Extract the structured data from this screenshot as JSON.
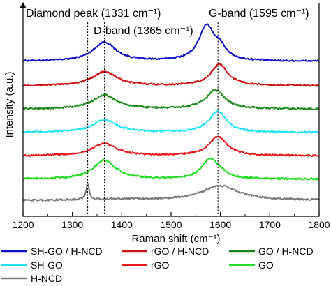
{
  "chart_data": {
    "type": "line",
    "title": "",
    "xlabel": "Raman shift (cm⁻¹)",
    "ylabel": "Intensity (a.u.)",
    "xlim": [
      1200,
      1800
    ],
    "x_ticks": [
      "1200",
      "1300",
      "1400",
      "1500",
      "1600",
      "1700",
      "1800"
    ],
    "grid": false,
    "legend_position": "bottom",
    "reference_lines": [
      {
        "x": 1331,
        "label": "Diamond peak (1331 cm⁻¹)",
        "style": "dotted"
      },
      {
        "x": 1365,
        "label": "D-band (1365 cm⁻¹)",
        "style": "dotted"
      },
      {
        "x": 1595,
        "label": "G-band (1595 cm⁻¹)",
        "style": "dotted"
      }
    ],
    "series": [
      {
        "name": "SH-GO / H-NCD",
        "color": "#1010c8",
        "offset": 6,
        "baseline": 0.1,
        "d": [
          1365,
          0.85,
          55
        ],
        "g": [
          1572,
          1.55,
          38
        ],
        "g2": [
          1600,
          0.45,
          30
        ],
        "diamond": 0,
        "noise": 0.035
      },
      {
        "name": "rGO / H-NCD",
        "color": "#c81414",
        "offset": 5,
        "baseline": 0.05,
        "d": [
          1365,
          0.62,
          60
        ],
        "g": [
          1598,
          0.95,
          42
        ],
        "g2": [
          1600,
          0,
          30
        ],
        "diamond": 0,
        "noise": 0.035
      },
      {
        "name": "GO / H-NCD",
        "color": "#1a8a1a",
        "offset": 4,
        "baseline": 0.05,
        "d": [
          1365,
          0.62,
          60
        ],
        "g": [
          1590,
          0.85,
          45
        ],
        "g2": [
          1600,
          0,
          30
        ],
        "diamond": 0,
        "noise": 0.04
      },
      {
        "name": "SH-GO",
        "color": "#22e4f0",
        "offset": 3,
        "baseline": 0.05,
        "d": [
          1365,
          0.55,
          60
        ],
        "g": [
          1595,
          0.95,
          42
        ],
        "g2": [
          1600,
          0,
          30
        ],
        "diamond": 0,
        "noise": 0.04
      },
      {
        "name": "rGO",
        "color": "#e81818",
        "offset": 2,
        "baseline": 0.05,
        "d": [
          1365,
          0.55,
          60
        ],
        "g": [
          1595,
          0.85,
          45
        ],
        "g2": [
          1600,
          0,
          30
        ],
        "diamond": 0,
        "noise": 0.035
      },
      {
        "name": "GO",
        "color": "#22dd22",
        "offset": 1,
        "baseline": 0.05,
        "d": [
          1365,
          0.85,
          55
        ],
        "g": [
          1578,
          0.85,
          38
        ],
        "g2": [
          1600,
          0.2,
          35
        ],
        "diamond": 0,
        "noise": 0.04
      },
      {
        "name": "H-NCD",
        "color": "#7a7a7a",
        "offset": 0,
        "baseline": 0.15,
        "d": [
          1400,
          0.05,
          120
        ],
        "g": [
          1600,
          0.65,
          90
        ],
        "g2": [
          1600,
          0,
          30
        ],
        "diamond": 0.75,
        "noise": 0.04
      }
    ]
  }
}
